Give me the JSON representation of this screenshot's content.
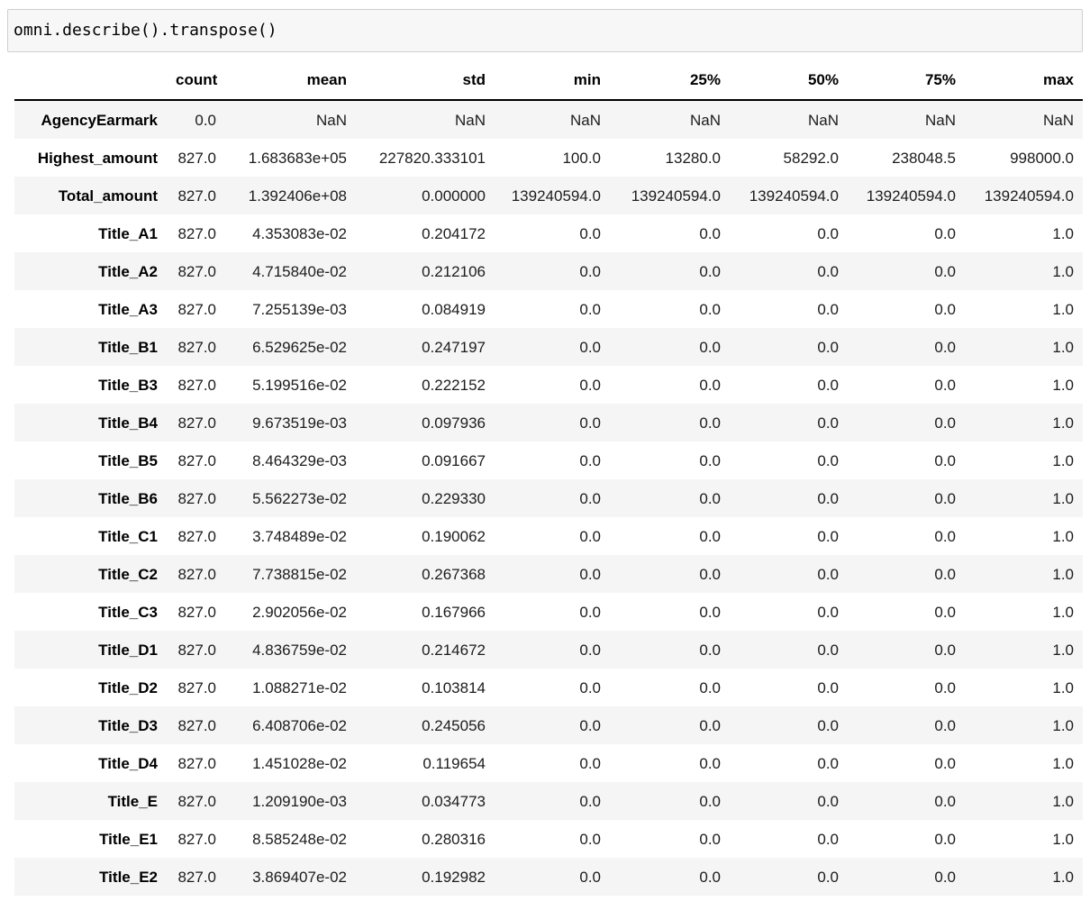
{
  "colors": {
    "page-bg": "#ffffff",
    "code-bg": "#f7f7f7",
    "code-border": "#cfcfcf",
    "stripe": "#f5f5f5",
    "header-rule": "#000000",
    "text": "#1c1c1c"
  },
  "code_cell": {
    "source": "omni.describe().transpose()"
  },
  "table": {
    "index_header": "",
    "columns": [
      "count",
      "mean",
      "std",
      "min",
      "25%",
      "50%",
      "75%",
      "max"
    ],
    "rows": [
      {
        "label": "AgencyEarmark",
        "values": [
          "0.0",
          "NaN",
          "NaN",
          "NaN",
          "NaN",
          "NaN",
          "NaN",
          "NaN"
        ]
      },
      {
        "label": "Highest_amount",
        "values": [
          "827.0",
          "1.683683e+05",
          "227820.333101",
          "100.0",
          "13280.0",
          "58292.0",
          "238048.5",
          "998000.0"
        ]
      },
      {
        "label": "Total_amount",
        "values": [
          "827.0",
          "1.392406e+08",
          "0.000000",
          "139240594.0",
          "139240594.0",
          "139240594.0",
          "139240594.0",
          "139240594.0"
        ]
      },
      {
        "label": "Title_A1",
        "values": [
          "827.0",
          "4.353083e-02",
          "0.204172",
          "0.0",
          "0.0",
          "0.0",
          "0.0",
          "1.0"
        ]
      },
      {
        "label": "Title_A2",
        "values": [
          "827.0",
          "4.715840e-02",
          "0.212106",
          "0.0",
          "0.0",
          "0.0",
          "0.0",
          "1.0"
        ]
      },
      {
        "label": "Title_A3",
        "values": [
          "827.0",
          "7.255139e-03",
          "0.084919",
          "0.0",
          "0.0",
          "0.0",
          "0.0",
          "1.0"
        ]
      },
      {
        "label": "Title_B1",
        "values": [
          "827.0",
          "6.529625e-02",
          "0.247197",
          "0.0",
          "0.0",
          "0.0",
          "0.0",
          "1.0"
        ]
      },
      {
        "label": "Title_B3",
        "values": [
          "827.0",
          "5.199516e-02",
          "0.222152",
          "0.0",
          "0.0",
          "0.0",
          "0.0",
          "1.0"
        ]
      },
      {
        "label": "Title_B4",
        "values": [
          "827.0",
          "9.673519e-03",
          "0.097936",
          "0.0",
          "0.0",
          "0.0",
          "0.0",
          "1.0"
        ]
      },
      {
        "label": "Title_B5",
        "values": [
          "827.0",
          "8.464329e-03",
          "0.091667",
          "0.0",
          "0.0",
          "0.0",
          "0.0",
          "1.0"
        ]
      },
      {
        "label": "Title_B6",
        "values": [
          "827.0",
          "5.562273e-02",
          "0.229330",
          "0.0",
          "0.0",
          "0.0",
          "0.0",
          "1.0"
        ]
      },
      {
        "label": "Title_C1",
        "values": [
          "827.0",
          "3.748489e-02",
          "0.190062",
          "0.0",
          "0.0",
          "0.0",
          "0.0",
          "1.0"
        ]
      },
      {
        "label": "Title_C2",
        "values": [
          "827.0",
          "7.738815e-02",
          "0.267368",
          "0.0",
          "0.0",
          "0.0",
          "0.0",
          "1.0"
        ]
      },
      {
        "label": "Title_C3",
        "values": [
          "827.0",
          "2.902056e-02",
          "0.167966",
          "0.0",
          "0.0",
          "0.0",
          "0.0",
          "1.0"
        ]
      },
      {
        "label": "Title_D1",
        "values": [
          "827.0",
          "4.836759e-02",
          "0.214672",
          "0.0",
          "0.0",
          "0.0",
          "0.0",
          "1.0"
        ]
      },
      {
        "label": "Title_D2",
        "values": [
          "827.0",
          "1.088271e-02",
          "0.103814",
          "0.0",
          "0.0",
          "0.0",
          "0.0",
          "1.0"
        ]
      },
      {
        "label": "Title_D3",
        "values": [
          "827.0",
          "6.408706e-02",
          "0.245056",
          "0.0",
          "0.0",
          "0.0",
          "0.0",
          "1.0"
        ]
      },
      {
        "label": "Title_D4",
        "values": [
          "827.0",
          "1.451028e-02",
          "0.119654",
          "0.0",
          "0.0",
          "0.0",
          "0.0",
          "1.0"
        ]
      },
      {
        "label": "Title_E",
        "values": [
          "827.0",
          "1.209190e-03",
          "0.034773",
          "0.0",
          "0.0",
          "0.0",
          "0.0",
          "1.0"
        ]
      },
      {
        "label": "Title_E1",
        "values": [
          "827.0",
          "8.585248e-02",
          "0.280316",
          "0.0",
          "0.0",
          "0.0",
          "0.0",
          "1.0"
        ]
      },
      {
        "label": "Title_E2",
        "values": [
          "827.0",
          "3.869407e-02",
          "0.192982",
          "0.0",
          "0.0",
          "0.0",
          "0.0",
          "1.0"
        ]
      }
    ]
  }
}
